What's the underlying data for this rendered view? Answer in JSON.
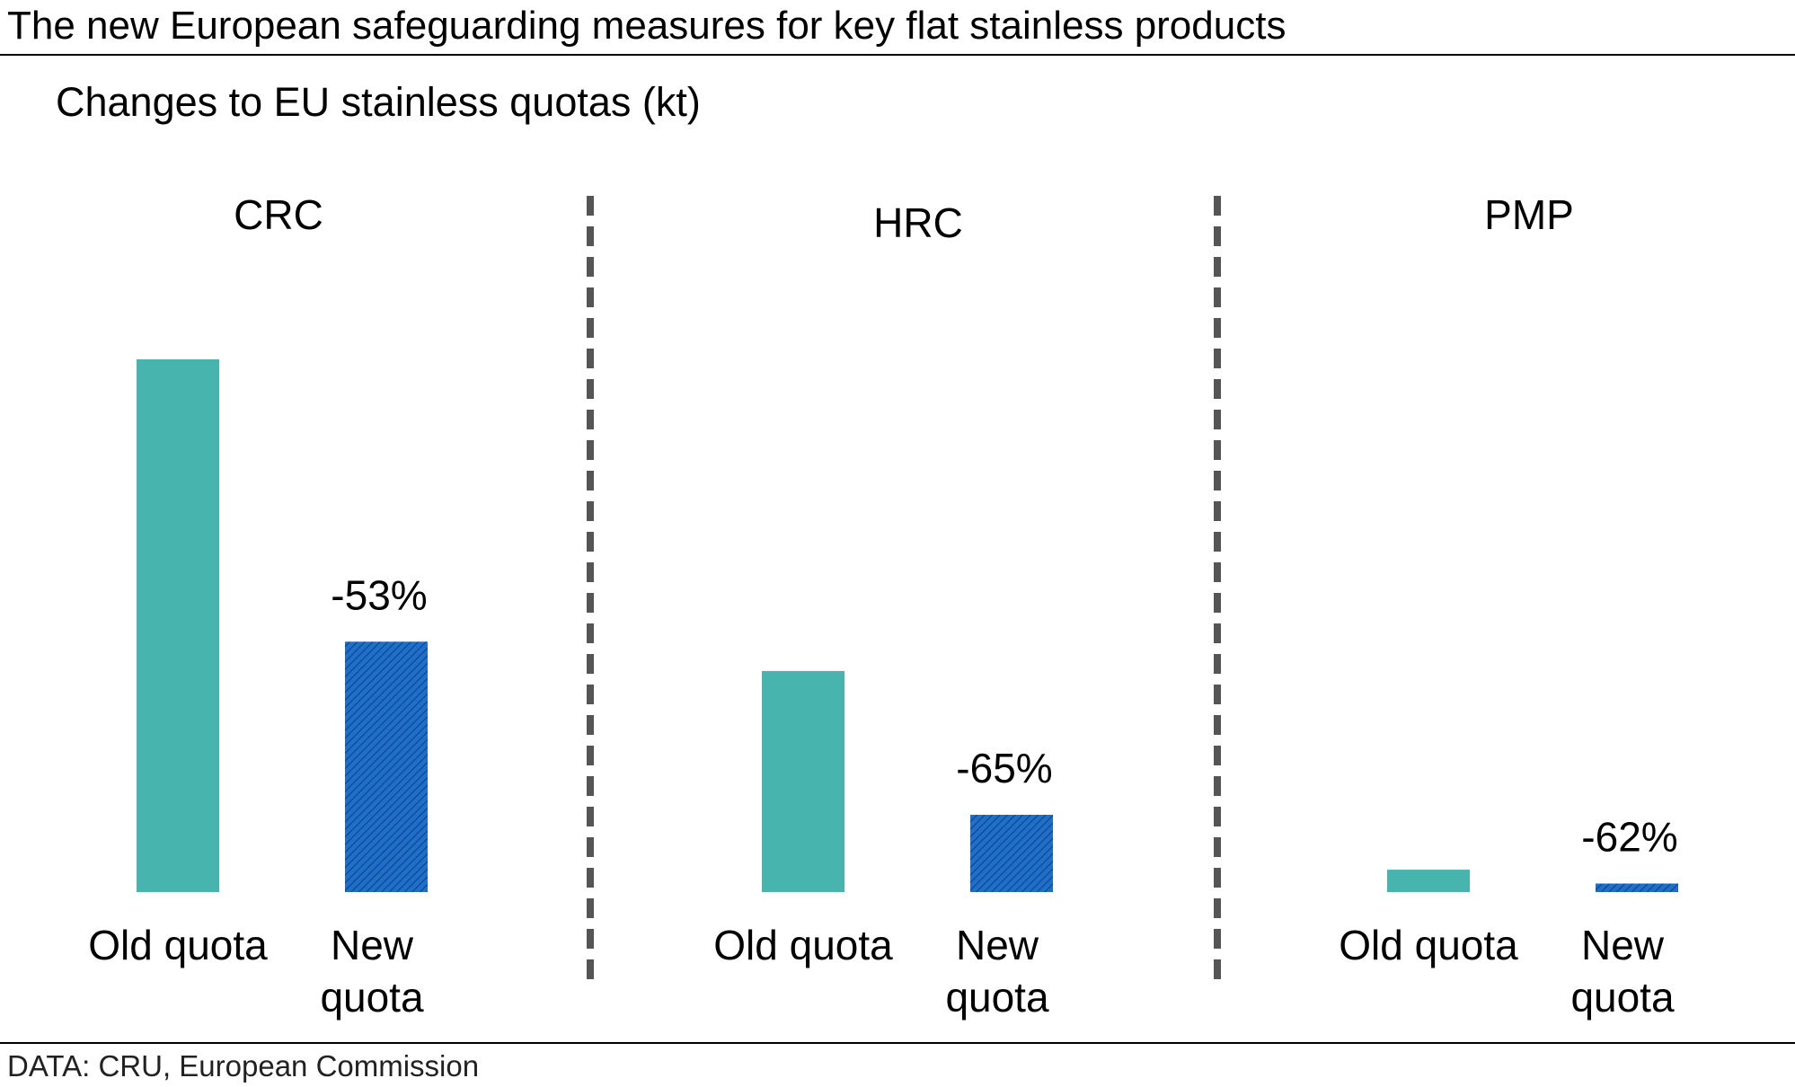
{
  "title": "The new European safeguarding measures for key flat stainless products",
  "subtitle": "Changes to EU stainless quotas (kt)",
  "source": "DATA: CRU, European Commission",
  "colors": {
    "old": "#47b4ae",
    "new": "#1f6fc8",
    "divider": "#555555"
  },
  "chart_data": {
    "type": "bar",
    "panels": [
      {
        "name": "CRC",
        "old": 100,
        "new": 47,
        "change": "-53%"
      },
      {
        "name": "HRC",
        "old": 41.5,
        "new": 14.5,
        "change": "-65%"
      },
      {
        "name": "PMP",
        "old": 4.2,
        "new": 1.6,
        "change": "-62%"
      }
    ],
    "categories": [
      "Old quota",
      "New quota"
    ],
    "category_labels": {
      "old": [
        "Old quota"
      ],
      "new": [
        "New",
        "quota"
      ]
    },
    "ylim": [
      0,
      100
    ]
  }
}
